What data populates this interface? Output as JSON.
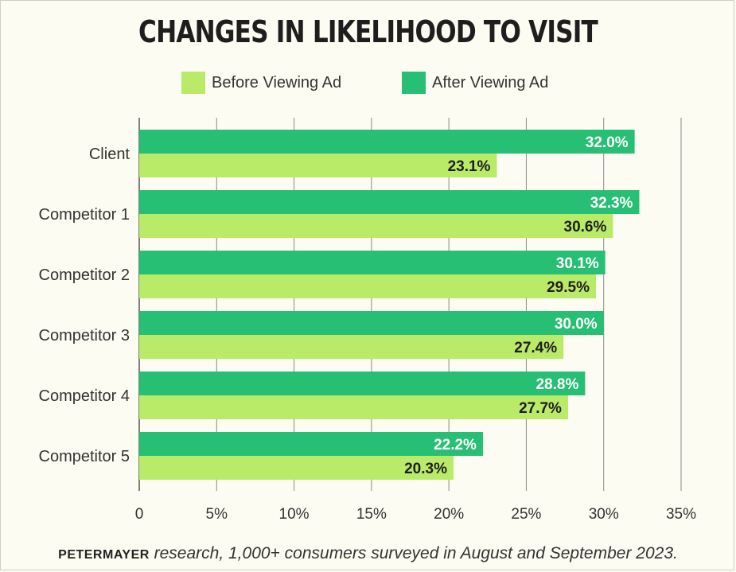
{
  "chart_data": {
    "type": "bar",
    "orientation": "horizontal",
    "title": "CHANGES IN LIKELIHOOD TO VISIT",
    "categories": [
      "Client",
      "Competitor 1",
      "Competitor 2",
      "Competitor 3",
      "Competitor 4",
      "Competitor 5"
    ],
    "series": [
      {
        "name": "After Viewing Ad",
        "color": "#26bf73",
        "values": [
          32.0,
          32.3,
          30.1,
          30.0,
          28.8,
          22.2
        ],
        "labels": [
          "32.0%",
          "32.3%",
          "30.1%",
          "30.0%",
          "28.8%",
          "22.2%"
        ]
      },
      {
        "name": "Before Viewing Ad",
        "color": "#b9ea68",
        "values": [
          23.1,
          30.6,
          29.5,
          27.4,
          27.7,
          20.3
        ],
        "labels": [
          "23.1%",
          "30.6%",
          "29.5%",
          "27.4%",
          "27.7%",
          "20.3%"
        ]
      }
    ],
    "xlim": [
      0,
      35
    ],
    "xticks": [
      "0",
      "5%",
      "10%",
      "15%",
      "20%",
      "25%",
      "30%",
      "35%"
    ],
    "grid": true,
    "legend_position": "top"
  },
  "legend": {
    "before_label": "Before Viewing Ad",
    "after_label": "After Viewing Ad",
    "before_color": "#b9ea68",
    "after_color": "#26bf73"
  },
  "footer": {
    "brand": "PETERMAYER",
    "text": " research, 1,000+ consumers surveyed in August and September 2023."
  }
}
